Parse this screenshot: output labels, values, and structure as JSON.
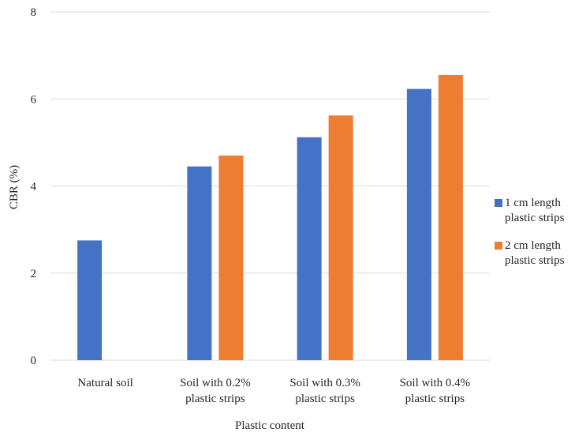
{
  "chart_data": {
    "type": "bar",
    "title": "",
    "xlabel": "Plastic content",
    "ylabel": "CBR (%)",
    "ylim": [
      0,
      8
    ],
    "yticks": [
      0,
      2,
      4,
      6,
      8
    ],
    "grid": true,
    "legend_position": "right",
    "categories": [
      [
        "Natural soil"
      ],
      [
        "Soil with 0.2%",
        "plastic strips"
      ],
      [
        "Soil with 0.3%",
        "plastic strips"
      ],
      [
        "Soil with 0.4%",
        "plastic strips"
      ]
    ],
    "series": [
      {
        "name": [
          "1 cm length",
          "plastic strips"
        ],
        "color": "#4472c4",
        "values": [
          2.75,
          4.45,
          5.12,
          6.23
        ]
      },
      {
        "name": [
          "2 cm length",
          "plastic strips"
        ],
        "color": "#ed7d31",
        "values": [
          null,
          4.7,
          5.62,
          6.55
        ]
      }
    ],
    "gridline_color": "#d9d9d9"
  }
}
